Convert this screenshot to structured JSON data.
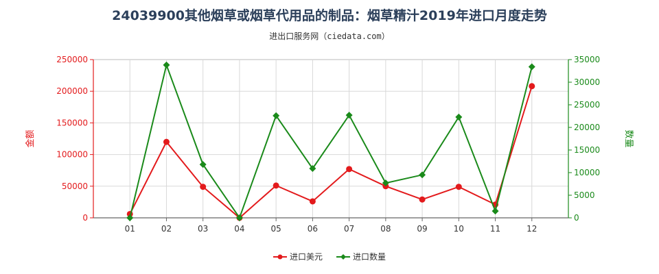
{
  "chart_data": {
    "type": "line",
    "title": "24039900其他烟草或烟草代用品的制品：烟草精汁2019年进口月度走势",
    "subtitle": "进出口服务网（ciedata.com）",
    "categories": [
      "01",
      "02",
      "03",
      "04",
      "05",
      "06",
      "07",
      "08",
      "09",
      "10",
      "11",
      "12"
    ],
    "y_left": {
      "label": "金额",
      "range": [
        0,
        250000
      ],
      "ticks": [
        0,
        50000,
        100000,
        150000,
        200000,
        250000
      ],
      "color": "#e31a1c"
    },
    "y_right": {
      "label": "数量",
      "range": [
        0,
        35000
      ],
      "ticks": [
        0,
        5000,
        10000,
        15000,
        20000,
        25000,
        30000,
        35000
      ],
      "color": "#1a8a1a"
    },
    "series": [
      {
        "name": "进口美元",
        "axis": "left",
        "color": "#e31a1c",
        "values": [
          6000,
          120000,
          49000,
          0,
          51000,
          26000,
          77000,
          50000,
          29000,
          49000,
          21000,
          208000
        ]
      },
      {
        "name": "进口数量",
        "axis": "right",
        "color": "#1a8a1a",
        "values": [
          0,
          33800,
          11800,
          0,
          22600,
          10900,
          22700,
          7700,
          9500,
          22300,
          1500,
          33400
        ]
      }
    ],
    "grid": true,
    "legend": "bottom"
  }
}
